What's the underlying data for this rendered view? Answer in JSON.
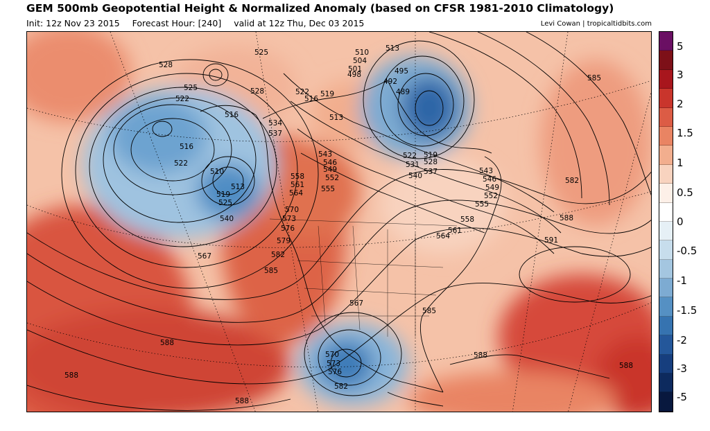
{
  "header": {
    "title": "GEM 500mb Geopotential Height & Normalized Anomaly (based on CFSR 1981-2010 Climatology)",
    "init": "Init: 12z Nov 23 2015",
    "forecast_hour": "Forecast Hour: [240]",
    "valid": "valid at 12z Thu, Dec 03 2015",
    "credit": "Levi Cowan | tropicaltidbits.com"
  },
  "colorbar": {
    "ticks": [
      "5",
      "3",
      "2",
      "1.5",
      "1",
      "0.5",
      "0",
      "-0.5",
      "-1",
      "-1.5",
      "-2",
      "-3",
      "-5"
    ],
    "colors": [
      "#6a0f63",
      "#7d1018",
      "#a8161d",
      "#c9352c",
      "#dc5c45",
      "#e98463",
      "#f2ae8e",
      "#f8d3bf",
      "#fdf0e8",
      "#ffffff",
      "#e6f0f6",
      "#c7ddec",
      "#a4c6e0",
      "#7dabd2",
      "#5590c3",
      "#3673b0",
      "#24579a",
      "#163e7e",
      "#0d2a5e",
      "#08183e"
    ]
  },
  "contour_labels": [
    "528",
    "525",
    "528",
    "525",
    "522",
    "516",
    "516",
    "522",
    "510",
    "513",
    "519",
    "525",
    "540",
    "567",
    "510",
    "513",
    "504",
    "501",
    "498",
    "495",
    "492",
    "489",
    "522",
    "519",
    "516",
    "513",
    "534",
    "537",
    "543",
    "546",
    "549",
    "552",
    "555",
    "558",
    "561",
    "564",
    "570",
    "573",
    "576",
    "579",
    "582",
    "585",
    "522",
    "519",
    "531",
    "528",
    "537",
    "540",
    "543",
    "546",
    "549",
    "552",
    "555",
    "558",
    "561",
    "564",
    "585",
    "582",
    "588",
    "591",
    "567",
    "585",
    "570",
    "573",
    "576",
    "582",
    "588",
    "588",
    "588",
    "588",
    "588"
  ]
}
